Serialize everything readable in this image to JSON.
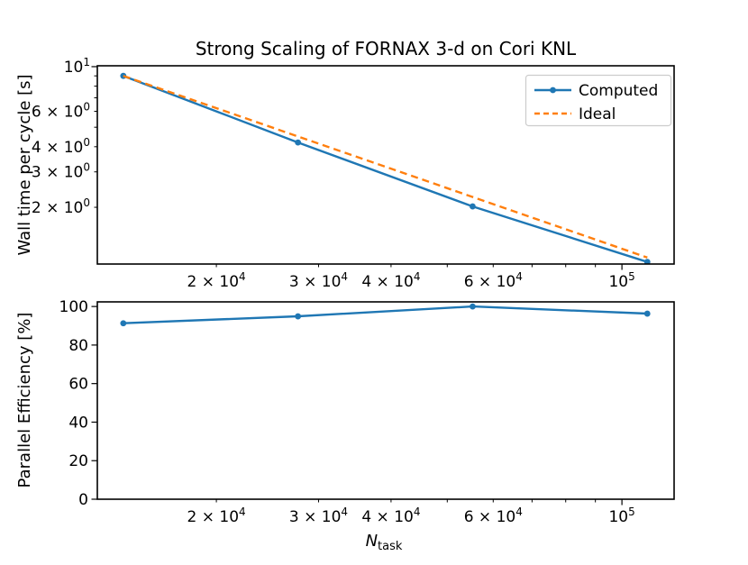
{
  "figure": {
    "title": "Strong Scaling of FORNAX 3-d on Cori KNL",
    "background_color": "#ffffff",
    "frame_color": "#000000",
    "text_color": "#000000",
    "legend_edge_color": "#cccccc"
  },
  "labels": {
    "xlabel_main": "N",
    "xlabel_sub": "task"
  },
  "chart_data": [
    {
      "type": "line",
      "title": "Strong Scaling of FORNAX 3-d on Cori KNL",
      "xlabel": "N_task",
      "ylabel": "Wall time per cycle [s]",
      "xscale": "log",
      "yscale": "log",
      "xlim": [
        12470,
        123000
      ],
      "ylim": [
        1.045,
        10.1
      ],
      "grid": false,
      "legend": {
        "position": "upper right",
        "entries": [
          "Computed",
          "Ideal"
        ]
      },
      "x": [
        13824,
        27648,
        55296,
        110592
      ],
      "series": [
        {
          "name": "Computed",
          "values": [
            9.0,
            4.2,
            2.02,
            1.07
          ],
          "color": "#1f77b4",
          "line_style": "solid",
          "marker": "circle"
        },
        {
          "name": "Ideal",
          "values": [
            9.0,
            4.5,
            2.25,
            1.125
          ],
          "color": "#ff7f0e",
          "line_style": "dashed",
          "marker": "none"
        }
      ],
      "x_ticks": {
        "major": [
          {
            "value": 100000,
            "base": "10",
            "exp": "5"
          }
        ],
        "minor_labeled": [
          {
            "value": 20000,
            "base": "2 × 10",
            "exp": "4"
          },
          {
            "value": 30000,
            "base": "3 × 10",
            "exp": "4"
          },
          {
            "value": 40000,
            "base": "4 × 10",
            "exp": "4"
          },
          {
            "value": 60000,
            "base": "6 × 10",
            "exp": "4"
          }
        ],
        "minor_unlabeled": [
          50000,
          70000,
          80000,
          90000
        ]
      },
      "y_ticks": {
        "major": [
          {
            "value": 10,
            "base": "10",
            "exp": "1"
          }
        ],
        "minor_labeled": [
          {
            "value": 6,
            "base": "6 × 10",
            "exp": "0"
          },
          {
            "value": 4,
            "base": "4 × 10",
            "exp": "0"
          },
          {
            "value": 3,
            "base": "3 × 10",
            "exp": "0"
          },
          {
            "value": 2,
            "base": "2 × 10",
            "exp": "0"
          }
        ],
        "minor_unlabeled": [
          9,
          8,
          7,
          5
        ]
      }
    },
    {
      "type": "line",
      "xlabel": "N_task",
      "ylabel": "Parallel Efficiency [%]",
      "xscale": "log",
      "yscale": "linear",
      "xlim": [
        12470,
        123000
      ],
      "ylim": [
        0,
        102.4
      ],
      "grid": false,
      "x": [
        13824,
        27648,
        55296,
        110592
      ],
      "series": [
        {
          "name": "Parallel Efficiency",
          "values": [
            91.3,
            94.9,
            100.0,
            96.3
          ],
          "color": "#1f77b4",
          "line_style": "solid",
          "marker": "circle"
        }
      ],
      "x_ticks": {
        "major": [
          {
            "value": 100000,
            "base": "10",
            "exp": "5"
          }
        ],
        "minor_labeled": [
          {
            "value": 20000,
            "base": "2 × 10",
            "exp": "4"
          },
          {
            "value": 30000,
            "base": "3 × 10",
            "exp": "4"
          },
          {
            "value": 40000,
            "base": "4 × 10",
            "exp": "4"
          },
          {
            "value": 60000,
            "base": "6 × 10",
            "exp": "4"
          }
        ],
        "minor_unlabeled": [
          50000,
          70000,
          80000,
          90000
        ]
      },
      "y_ticks": {
        "major_labeled": [
          {
            "value": 0,
            "label": "0"
          },
          {
            "value": 20,
            "label": "20"
          },
          {
            "value": 40,
            "label": "40"
          },
          {
            "value": 60,
            "label": "60"
          },
          {
            "value": 80,
            "label": "80"
          },
          {
            "value": 100,
            "label": "100"
          }
        ]
      }
    }
  ]
}
